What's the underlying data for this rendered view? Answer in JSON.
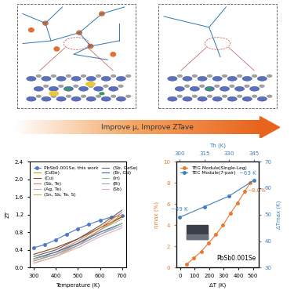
{
  "diagram": {
    "arrow_label": "Improve μ, Improve ZTave"
  },
  "chart_data": [
    {
      "type": "line",
      "x_label": "Temperature (K)",
      "y_label": "ZT",
      "xlim": [
        280,
        720
      ],
      "xticks": [
        300,
        400,
        500,
        600,
        700
      ],
      "ylim": [
        0,
        2.4
      ],
      "yticks": [
        {
          "value": 0,
          "label": "0.0"
        },
        {
          "value": 0.4,
          "label": "0.4"
        },
        {
          "value": 0.8,
          "label": "0.8"
        },
        {
          "value": 1.2,
          "label": "1.2"
        },
        {
          "value": 1.6,
          "label": "1.6"
        },
        {
          "value": 2.0,
          "label": "2.0"
        },
        {
          "value": 2.4,
          "label": "2.4"
        }
      ],
      "legend": "upper left",
      "series": [
        {
          "name": "PbSb0.001Se, this work",
          "color": "#4a78c8",
          "marker": "o",
          "line_style": "solid",
          "x": [
            300,
            350,
            400,
            450,
            500,
            550,
            600,
            650,
            700
          ],
          "values": [
            0.45,
            0.52,
            0.63,
            0.76,
            0.88,
            0.98,
            1.07,
            1.14,
            1.18
          ]
        },
        {
          "name": "(CdSe)",
          "color": "#c8a000",
          "line_style": "solid",
          "x": [
            300,
            400,
            500,
            600,
            700
          ],
          "values": [
            0.15,
            0.3,
            0.55,
            0.85,
            1.15
          ]
        },
        {
          "name": "(Cu)",
          "color": "#8b4513",
          "line_style": "solid",
          "x": [
            300,
            400,
            500,
            600,
            700
          ],
          "values": [
            0.3,
            0.45,
            0.65,
            0.9,
            1.15
          ]
        },
        {
          "name": "(Sb, Te)",
          "color": "#e08060",
          "line_style": "solid",
          "x": [
            300,
            400,
            500,
            600,
            700
          ],
          "values": [
            0.2,
            0.35,
            0.6,
            0.9,
            1.25
          ]
        },
        {
          "name": "(Ag, Te)",
          "color": "#b0b0b0",
          "line_style": "solid",
          "x": [
            300,
            400,
            500,
            600,
            700
          ],
          "values": [
            0.15,
            0.3,
            0.55,
            0.85,
            1.1
          ]
        },
        {
          "name": "(Sn, Sb, Te, S)",
          "color": "#d4a060",
          "line_style": "solid",
          "x": [
            300,
            400,
            500,
            600,
            700
          ],
          "values": [
            0.1,
            0.25,
            0.5,
            0.85,
            1.2
          ]
        },
        {
          "name": "(Sb, GeSe)",
          "color": "#606060",
          "line_style": "solid",
          "x": [
            300,
            400,
            500,
            600,
            700
          ],
          "values": [
            0.25,
            0.4,
            0.65,
            0.95,
            1.3
          ]
        },
        {
          "name": "(Br, Gd)",
          "color": "#4060a0",
          "line_style": "solid",
          "x": [
            300,
            400,
            500,
            600,
            700
          ],
          "values": [
            0.2,
            0.35,
            0.55,
            0.8,
            1.0
          ]
        },
        {
          "name": "(In)",
          "color": "#90c090",
          "line_style": "solid",
          "x": [
            300,
            400,
            500,
            600,
            700
          ],
          "values": [
            0.2,
            0.3,
            0.5,
            0.75,
            1.0
          ]
        },
        {
          "name": "(Bi)",
          "color": "#a0a0d0",
          "line_style": "solid",
          "x": [
            300,
            400,
            500,
            600,
            700
          ],
          "values": [
            0.15,
            0.3,
            0.5,
            0.75,
            0.95
          ]
        },
        {
          "name": "(Sb)",
          "color": "#e0b0b0",
          "line_style": "solid",
          "x": [
            300,
            400,
            500,
            600,
            700
          ],
          "values": [
            0.1,
            0.25,
            0.45,
            0.7,
            0.9
          ]
        }
      ]
    },
    {
      "type": "line",
      "x_label": "ΔT (K)",
      "y_label": "ηmax (%)",
      "x2_label": "Th (K)",
      "y2_label": "ΔTmax (K)",
      "xlim": [
        -25,
        540
      ],
      "xticks": [
        0,
        100,
        200,
        300,
        400,
        500
      ],
      "ylim": [
        0,
        10
      ],
      "yticks": [
        0,
        2,
        4,
        6,
        8,
        10
      ],
      "x2lim": [
        298,
        348
      ],
      "x2ticks": [
        300,
        315,
        330,
        345
      ],
      "y2lim": [
        30,
        70
      ],
      "y2ticks": [
        30,
        40,
        50,
        60,
        70
      ],
      "legend": "upper left",
      "series": [
        {
          "name": "TEG Module(Single-Leg)",
          "color": "#e8792e",
          "marker": "o",
          "line_style": "solid",
          "axis": "y",
          "x": [
            45,
            95,
            145,
            195,
            245,
            295,
            345,
            395,
            445,
            480
          ],
          "values": [
            0.3,
            0.9,
            1.5,
            2.3,
            3.1,
            4.0,
            5.1,
            6.1,
            7.2,
            8.0
          ]
        },
        {
          "name": "TEC Module(7-pair)",
          "color": "#3f7fbf",
          "marker": "o",
          "line_style": "solid",
          "axis": "y2",
          "x": [
            300,
            315,
            330,
            345
          ],
          "values": [
            49,
            53,
            57,
            63
          ]
        }
      ],
      "annotations": [
        {
          "text": "~49 K",
          "series": 1,
          "x": 300,
          "y": 49
        },
        {
          "text": "~63 K",
          "series": 1,
          "x": 345,
          "y": 63
        },
        {
          "text": "~8.0%",
          "series": 0,
          "x": 480,
          "y": 8.0
        }
      ],
      "inset_label": "PbSb0.001Se"
    }
  ]
}
